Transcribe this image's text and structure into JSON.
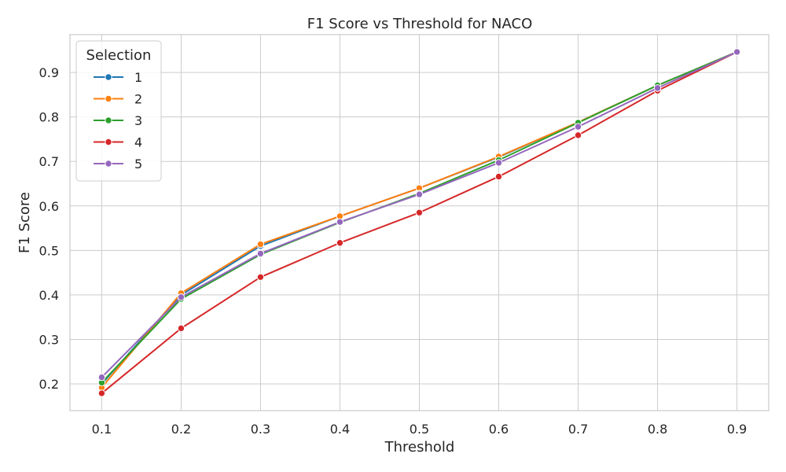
{
  "chart_data": {
    "type": "line",
    "title": "F1 Score vs Threshold for NACO",
    "xlabel": "Threshold",
    "ylabel": "F1 Score",
    "x": [
      0.1,
      0.2,
      0.3,
      0.4,
      0.5,
      0.6,
      0.7,
      0.8,
      0.9
    ],
    "x_ticks": [
      "0.1",
      "0.2",
      "0.3",
      "0.4",
      "0.5",
      "0.6",
      "0.7",
      "0.8",
      "0.9"
    ],
    "y_ticks": [
      "0.2",
      "0.3",
      "0.4",
      "0.5",
      "0.6",
      "0.7",
      "0.8",
      "0.9"
    ],
    "xlim": [
      0.06,
      0.94
    ],
    "ylim": [
      0.14,
      0.985
    ],
    "grid": true,
    "legend": {
      "title": "Selection",
      "position": "top-left"
    },
    "series": [
      {
        "name": "1",
        "color": "#1f77b4",
        "values": [
          0.2,
          0.4,
          0.51,
          0.577,
          0.64,
          0.71,
          0.788,
          0.871,
          0.946
        ]
      },
      {
        "name": "2",
        "color": "#ff7f0e",
        "values": [
          0.192,
          0.404,
          0.514,
          0.577,
          0.64,
          0.711,
          0.788,
          0.871,
          0.946
        ]
      },
      {
        "name": "3",
        "color": "#2ca02c",
        "values": [
          0.203,
          0.391,
          0.491,
          0.563,
          0.628,
          0.703,
          0.787,
          0.871,
          0.946
        ]
      },
      {
        "name": "4",
        "color": "#d62728",
        "values": [
          0.179,
          0.325,
          0.44,
          0.517,
          0.585,
          0.666,
          0.759,
          0.859,
          0.946
        ]
      },
      {
        "name": "5",
        "color": "#9467bd",
        "values": [
          0.215,
          0.395,
          0.493,
          0.564,
          0.626,
          0.697,
          0.778,
          0.865,
          0.946
        ]
      }
    ]
  }
}
